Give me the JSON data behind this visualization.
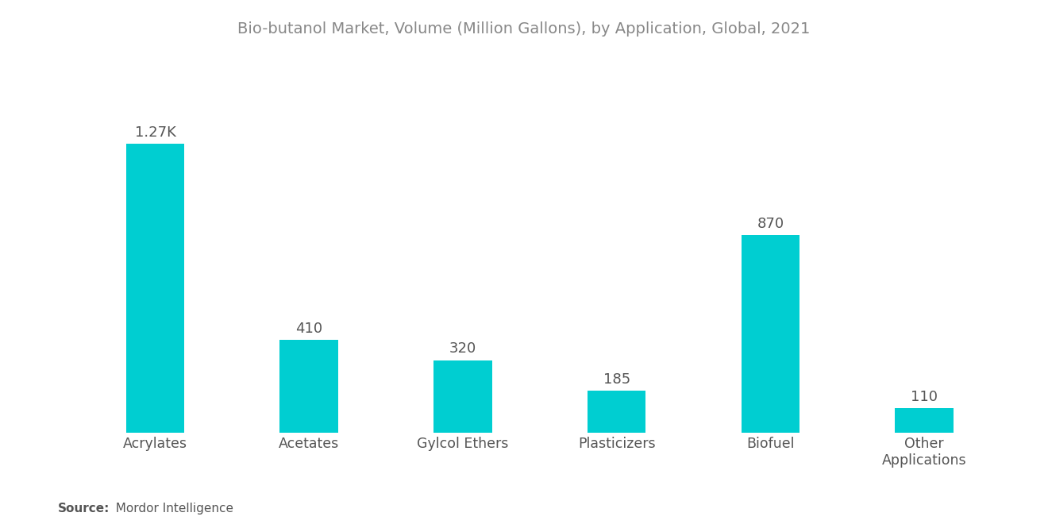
{
  "title": "Bio-butanol Market, Volume (Million Gallons), by Application, Global, 2021",
  "categories": [
    "Acrylates",
    "Acetates",
    "Gylcol Ethers",
    "Plasticizers",
    "Biofuel",
    "Other\nApplications"
  ],
  "values": [
    1270,
    410,
    320,
    185,
    870,
    110
  ],
  "labels": [
    "1.27K",
    "410",
    "320",
    "185",
    "870",
    "110"
  ],
  "bar_color": "#00CED1",
  "background_color": "#ffffff",
  "title_color": "#888888",
  "label_color": "#555555",
  "source_bold": "Source:",
  "source_normal": "  Mordor Intelligence",
  "ylim": [
    0,
    1530
  ],
  "bar_width": 0.38,
  "title_fontsize": 14,
  "label_fontsize": 13,
  "tick_fontsize": 12.5,
  "source_fontsize": 11
}
